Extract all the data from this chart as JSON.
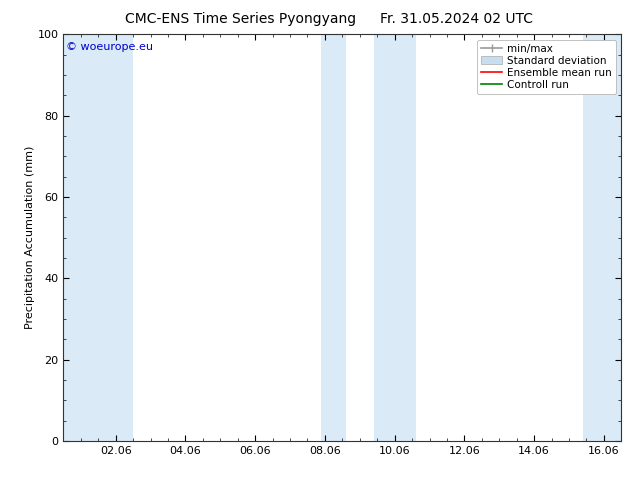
{
  "title_left": "CMC-ENS Time Series Pyongyang",
  "title_right": "Fr. 31.05.2024 02 UTC",
  "ylabel": "Precipitation Accumulation (mm)",
  "ylim": [
    0,
    100
  ],
  "yticks": [
    0,
    20,
    40,
    60,
    80,
    100
  ],
  "watermark": "© woeurope.eu",
  "watermark_color": "#0000cc",
  "bg_color": "#ffffff",
  "plot_bg_color": "#ffffff",
  "band_color": "#daeaf7",
  "xtick_labels": [
    "02.06",
    "04.06",
    "06.06",
    "08.06",
    "10.06",
    "12.06",
    "14.06",
    "16.06"
  ],
  "xtick_positions": [
    2.0,
    4.0,
    6.0,
    8.0,
    10.0,
    12.0,
    14.0,
    16.0
  ],
  "xmin": 0.5,
  "xmax": 16.5,
  "shade_bands": [
    [
      0.5,
      2.5
    ],
    [
      7.9,
      8.6
    ],
    [
      9.4,
      10.6
    ],
    [
      15.4,
      16.5
    ]
  ],
  "legend_labels": [
    "min/max",
    "Standard deviation",
    "Ensemble mean run",
    "Controll run"
  ],
  "legend_colors_line": [
    "#999999",
    "#c8ddf0",
    "#ff0000",
    "#008000"
  ],
  "title_fontsize": 10,
  "tick_fontsize": 8,
  "legend_fontsize": 7.5
}
